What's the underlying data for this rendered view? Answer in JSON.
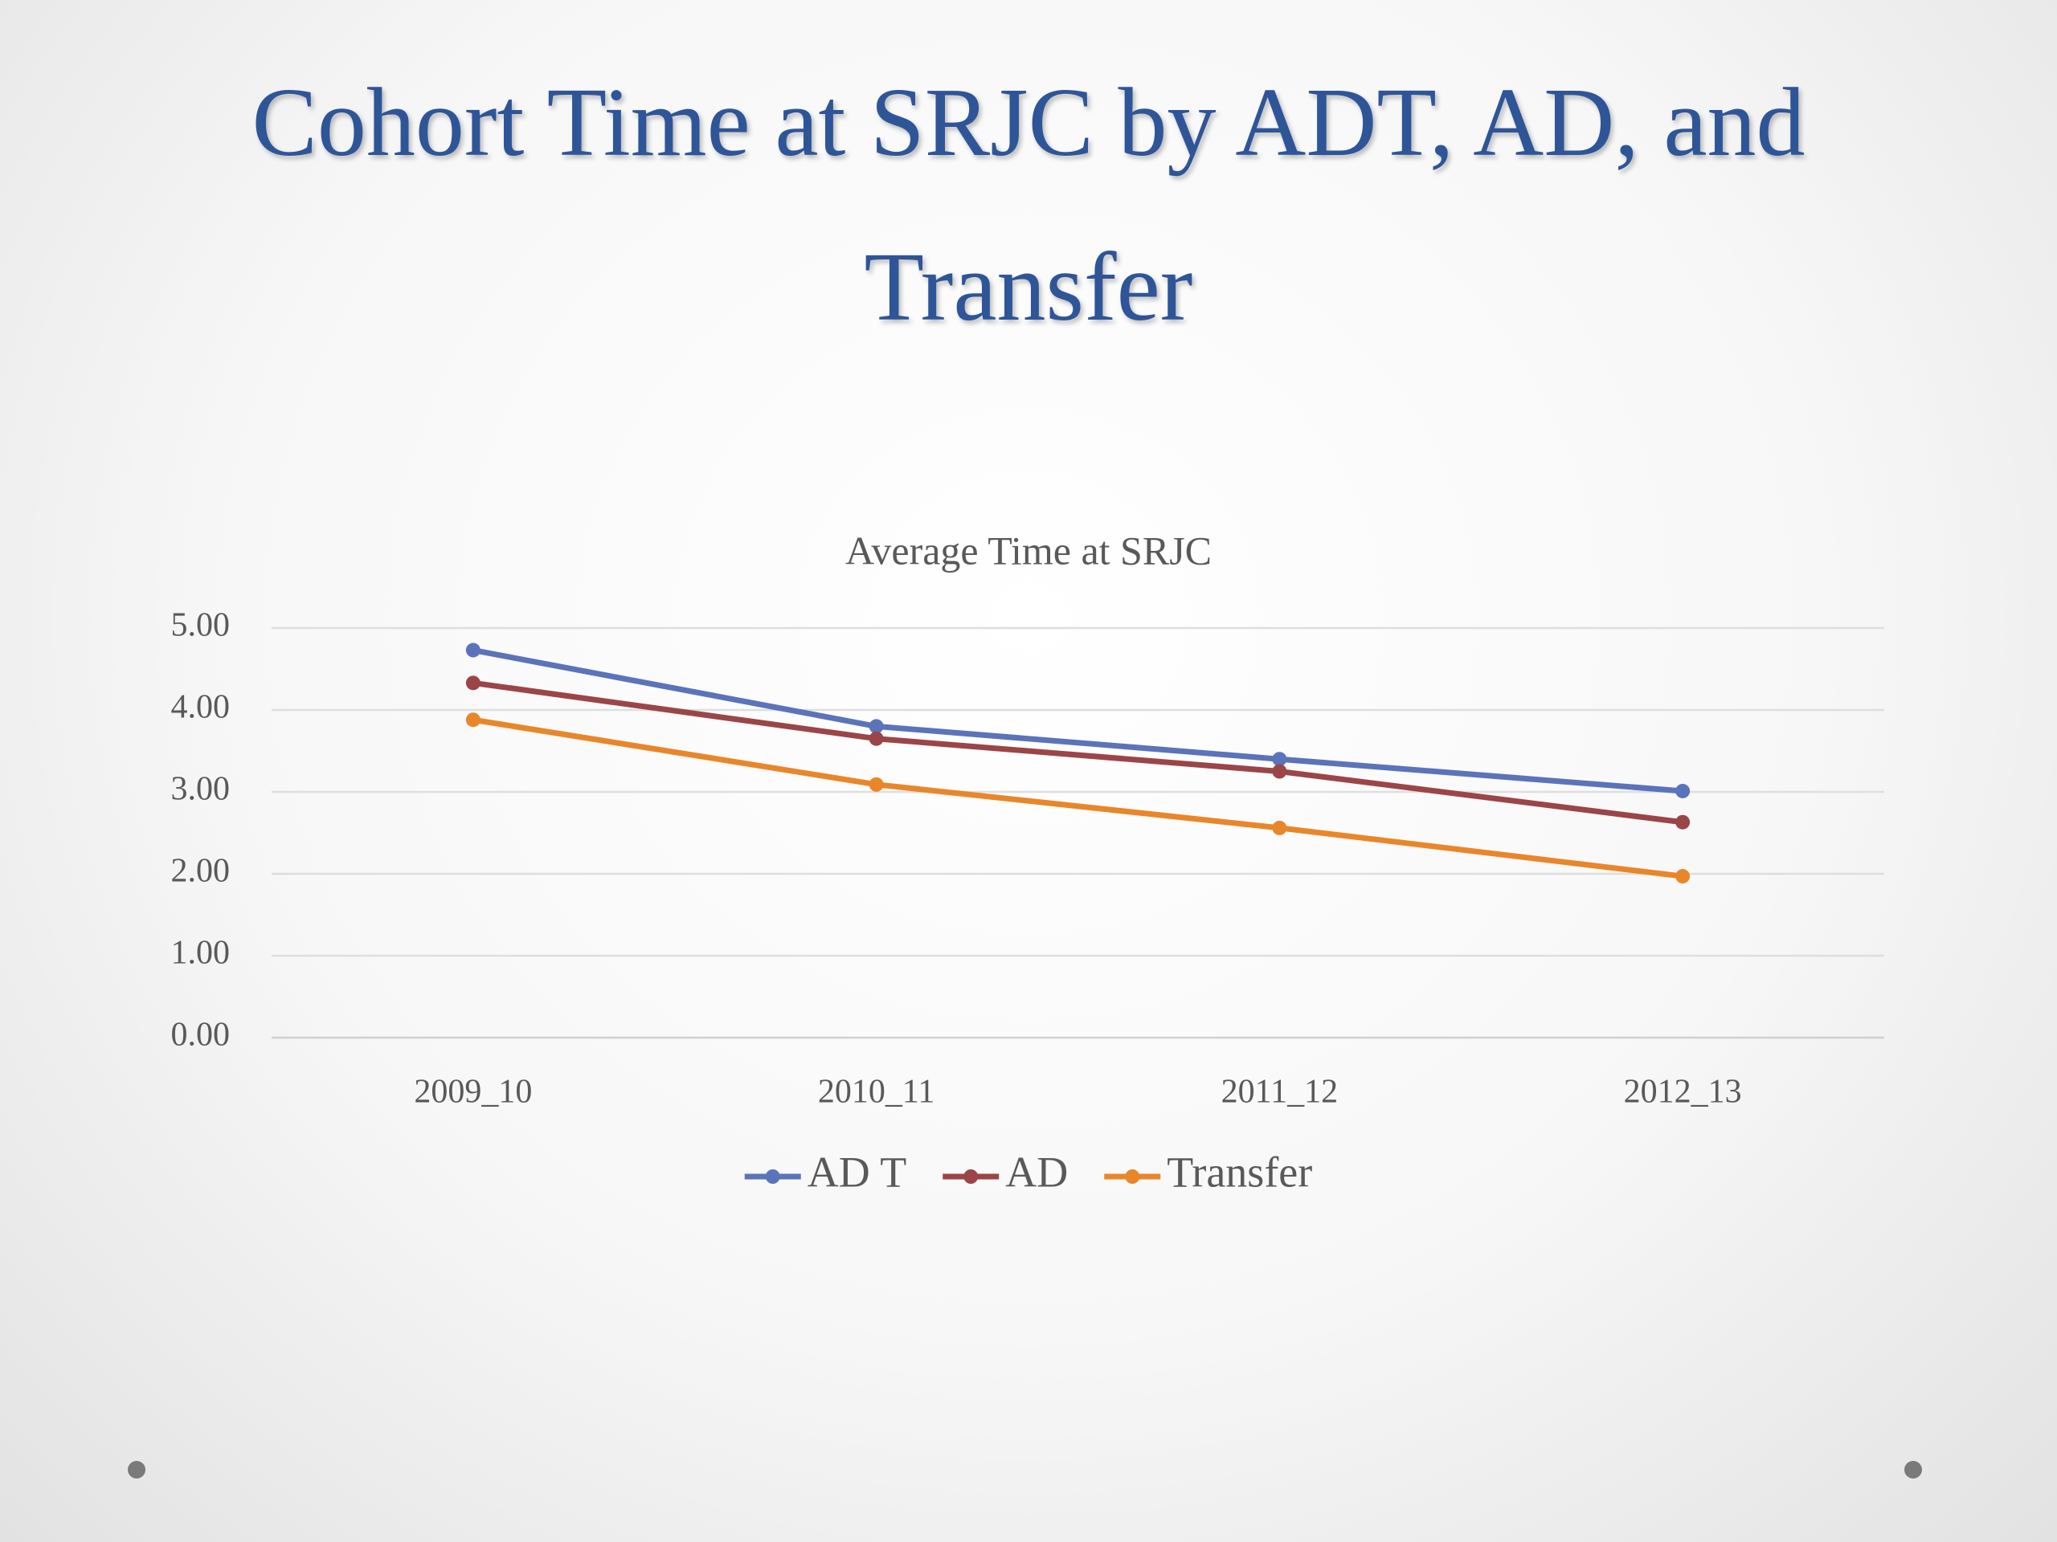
{
  "title": "Cohort Time at SRJC by ADT, AD, and Transfer",
  "chart_data": {
    "type": "line",
    "title": "Average Time at SRJC",
    "categories": [
      "2009_10",
      "2010_11",
      "2011_12",
      "2012_13"
    ],
    "series": [
      {
        "name": "AD T",
        "color": "#5b73ba",
        "values": [
          4.73,
          3.8,
          3.4,
          3.01
        ]
      },
      {
        "name": "AD",
        "color": "#9b4548",
        "values": [
          4.33,
          3.65,
          3.25,
          2.63
        ]
      },
      {
        "name": "Transfer",
        "color": "#e9862a",
        "values": [
          3.88,
          3.09,
          2.56,
          1.97
        ]
      }
    ],
    "ylim": [
      0,
      5
    ],
    "yticks": [
      {
        "value": 0,
        "label": "0.00"
      },
      {
        "value": 1,
        "label": "1.00"
      },
      {
        "value": 2,
        "label": "2.00"
      },
      {
        "value": 3,
        "label": "3.00"
      },
      {
        "value": 4,
        "label": "4.00"
      },
      {
        "value": 5,
        "label": "5.00"
      }
    ],
    "grid": true,
    "legend": "bottom"
  }
}
